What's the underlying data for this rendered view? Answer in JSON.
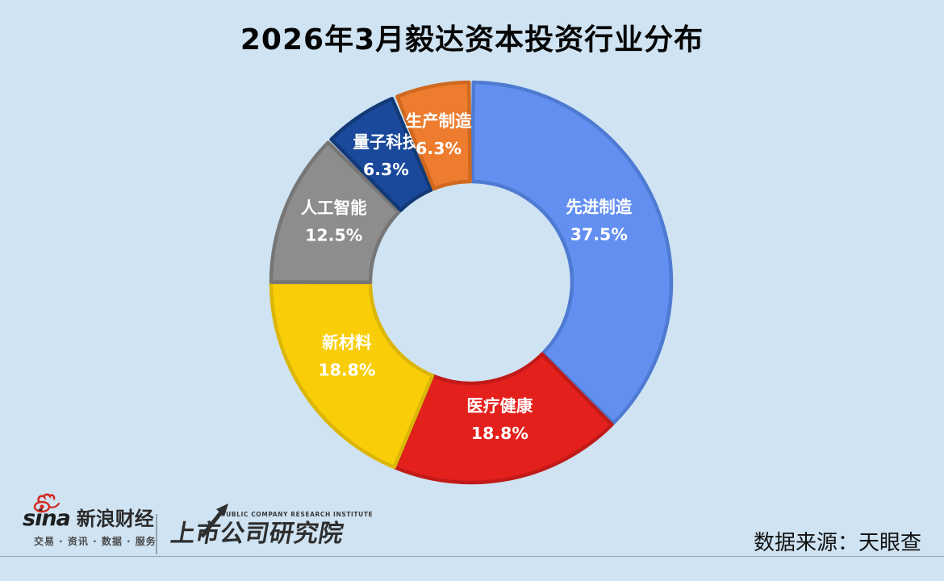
{
  "page": {
    "title": "2026年3月毅达资本投资行业分布",
    "background_color": "#CFE3F2"
  },
  "chart_data": {
    "type": "pie",
    "subtype": "donut",
    "title": "2026年3月毅达资本投资行业分布",
    "start_angle": "top",
    "direction": "clockwise",
    "label_position": "inside",
    "label_color": "#FFFFFF",
    "categories": [
      "先进制造",
      "医疗健康",
      "新材料",
      "人工智能",
      "量子科技",
      "生产制造"
    ],
    "values": [
      37.5,
      18.8,
      18.8,
      12.5,
      6.3,
      6.3
    ],
    "weights": [
      6,
      3,
      3,
      2,
      1,
      1
    ],
    "display_labels": [
      "37.5%",
      "18.8%",
      "18.8%",
      "12.5%",
      "6.3%",
      "6.3%"
    ],
    "colors": [
      "#628FF0",
      "#E3201C",
      "#F9CE08",
      "#8D8D8D",
      "#1A489B",
      "#ED7C2F"
    ],
    "border_colors": [
      "#4E7AD2",
      "#C11A19",
      "#DCB607",
      "#767676",
      "#123A77",
      "#D0691F"
    ]
  },
  "footer": {
    "sina_brand": "sina",
    "sina_name": "新浪财经",
    "sina_tagline": "交易 · 资讯 · 数据 · 服务",
    "institute_en": "PUBLIC COMPANY RESEARCH INSTITUTE",
    "institute_name": "上市公司研究院",
    "data_source": "数据来源：天眼查"
  }
}
